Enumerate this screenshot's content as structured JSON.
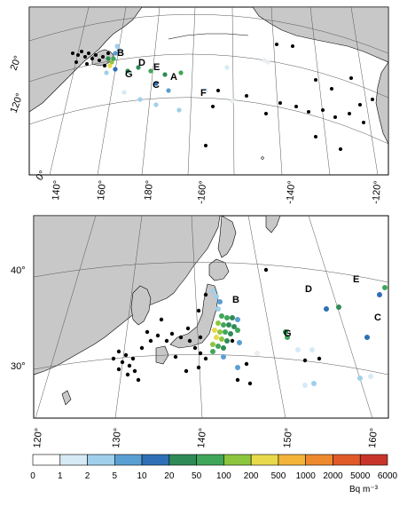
{
  "figure": {
    "top_map": {
      "longitude_labels": [
        "140°",
        "160°",
        "180°",
        "-160°",
        "-140°",
        "-120°"
      ],
      "latitude_labels": [
        "20°",
        "120°",
        "0°"
      ],
      "site_labels": [
        "A",
        "B",
        "C",
        "D",
        "E",
        "F",
        "G"
      ]
    },
    "bottom_map": {
      "longitude_labels": [
        "120°",
        "130°",
        "140°",
        "150°",
        "160°"
      ],
      "latitude_labels": [
        "40°",
        "30°"
      ],
      "site_labels": [
        "B",
        "C",
        "D",
        "E",
        "G"
      ]
    }
  },
  "colorbar": {
    "ticks": [
      "0",
      "1",
      "2",
      "5",
      "10",
      "20",
      "50",
      "100",
      "200",
      "500",
      "1000",
      "2000",
      "5000",
      "6000"
    ],
    "colors": [
      "#ffffff",
      "#d6eaf6",
      "#9fcfeb",
      "#5a9fd2",
      "#2f6fb5",
      "#2e8b57",
      "#3fa65a",
      "#8cc63f",
      "#e8d94a",
      "#f4b43a",
      "#ee8a2e",
      "#e05a28",
      "#c9342a"
    ],
    "unit": "Bq m⁻³"
  },
  "colors": {
    "land": "#c8c8c8",
    "sea": "#ffffff",
    "outline": "#000000",
    "graticule": "#555555"
  }
}
